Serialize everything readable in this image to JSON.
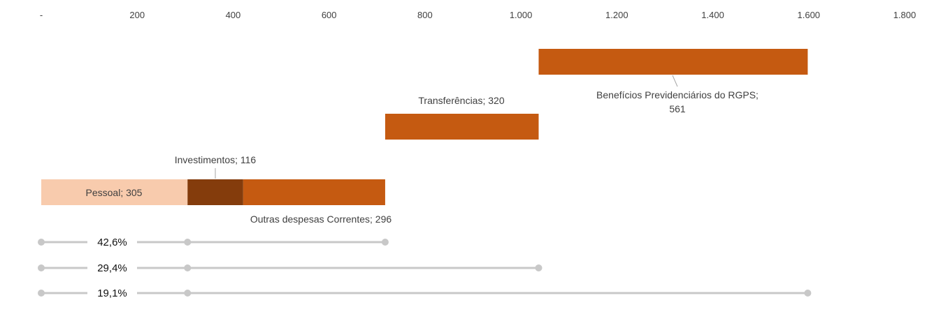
{
  "chart_data": {
    "type": "bar",
    "orientation": "horizontal",
    "stacked": "waterfall",
    "xlim": [
      0,
      1800
    ],
    "x_ticks": [
      0,
      200,
      400,
      600,
      800,
      1000,
      1200,
      1400,
      1600,
      1800
    ],
    "x_tick_labels": [
      "-",
      "200",
      "400",
      "600",
      "800",
      "1.000",
      "1.200",
      "1.400",
      "1.600",
      "1.800"
    ],
    "grid": false,
    "legend": "none",
    "segments": [
      {
        "name": "Pessoal",
        "value": 305,
        "row": 0,
        "start": 0,
        "label": "Pessoal; 305",
        "color": "#F8CBAD"
      },
      {
        "name": "Investimentos",
        "value": 116,
        "row": 0,
        "start": 305,
        "label": "Investimentos; 116",
        "color": "#843C0C"
      },
      {
        "name": "Outras despesas Correntes",
        "value": 296,
        "row": 0,
        "start": 421,
        "label": "Outras despesas Correntes; 296",
        "color": "#C55A11"
      },
      {
        "name": "Transferências",
        "value": 320,
        "row": 1,
        "start": 717,
        "label": "Transferências; 320",
        "color": "#C55A11"
      },
      {
        "name": "Benefícios Previdenciários do RGPS",
        "value": 561,
        "row": 2,
        "start": 1037,
        "label_lines": [
          "Benefícios Previdenciários do RGPS;",
          "561"
        ],
        "color": "#C55A11"
      }
    ],
    "share_lines": [
      {
        "label": "42,6%",
        "x_start": 0,
        "x_mark": 305,
        "x_end": 717
      },
      {
        "label": "29,4%",
        "x_start": 0,
        "x_mark": 305,
        "x_end": 1037
      },
      {
        "label": "19,1%",
        "x_start": 0,
        "x_mark": 305,
        "x_end": 1598
      }
    ],
    "share_line_color": "#C8C8C8"
  }
}
